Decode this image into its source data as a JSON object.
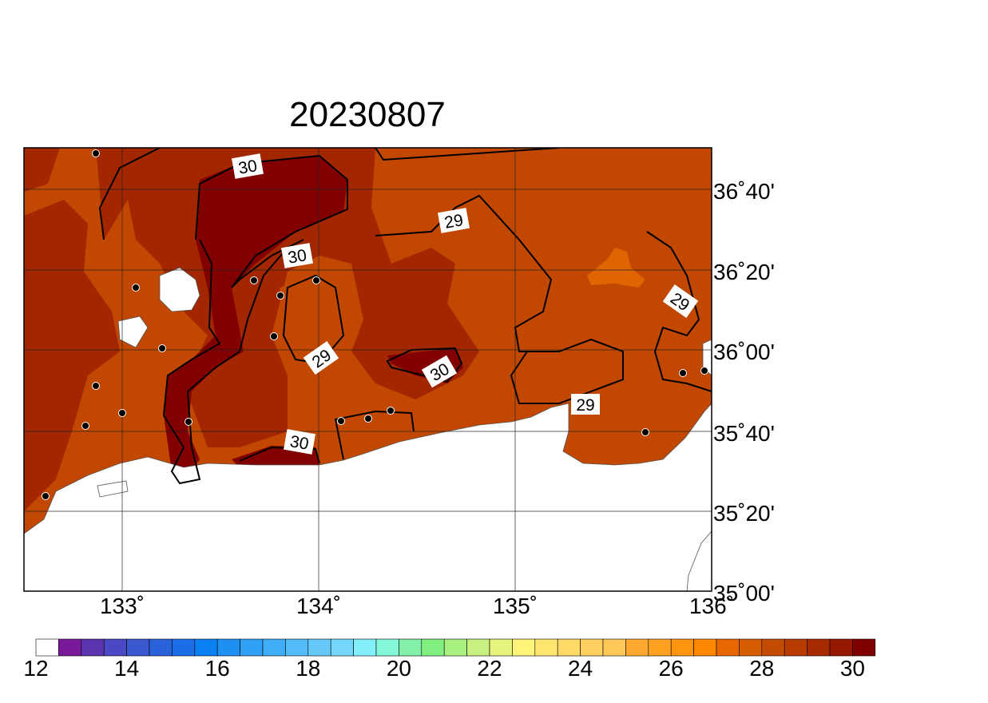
{
  "map": {
    "title": "20230807",
    "lat_labels": [
      "36˚40'",
      "36˚20'",
      "36˚00'",
      "35˚40'",
      "35˚20'",
      "35˚00'"
    ],
    "lon_labels": [
      "133˚",
      "134˚",
      "135˚",
      "136˚"
    ],
    "contour_labels": [
      30,
      30,
      29,
      29,
      30,
      29,
      30,
      29
    ]
  },
  "colorbar": {
    "labels": [
      12,
      14,
      16,
      18,
      20,
      22,
      24,
      26,
      28,
      30
    ],
    "colors": [
      "#ffffff",
      "#7a1a9a",
      "#5b34b0",
      "#4a48c2",
      "#3a58d0",
      "#2a62dc",
      "#1c6ee8",
      "#0a80f2",
      "#1e90f4",
      "#30a0f6",
      "#40aef6",
      "#52bcf8",
      "#64c8f8",
      "#74d6fa",
      "#82f0fa",
      "#82f8d8",
      "#82f0a8",
      "#82f080",
      "#a8f080",
      "#c8f080",
      "#e6f47c",
      "#fff47a",
      "#ffe470",
      "#ffda66",
      "#ffd060",
      "#ffc858",
      "#ffa830",
      "#ffa020",
      "#ff9410",
      "#ff8800",
      "#e86800",
      "#d85c00",
      "#c44c00",
      "#b83c00",
      "#a82a00",
      "#961800",
      "#800000"
    ]
  }
}
